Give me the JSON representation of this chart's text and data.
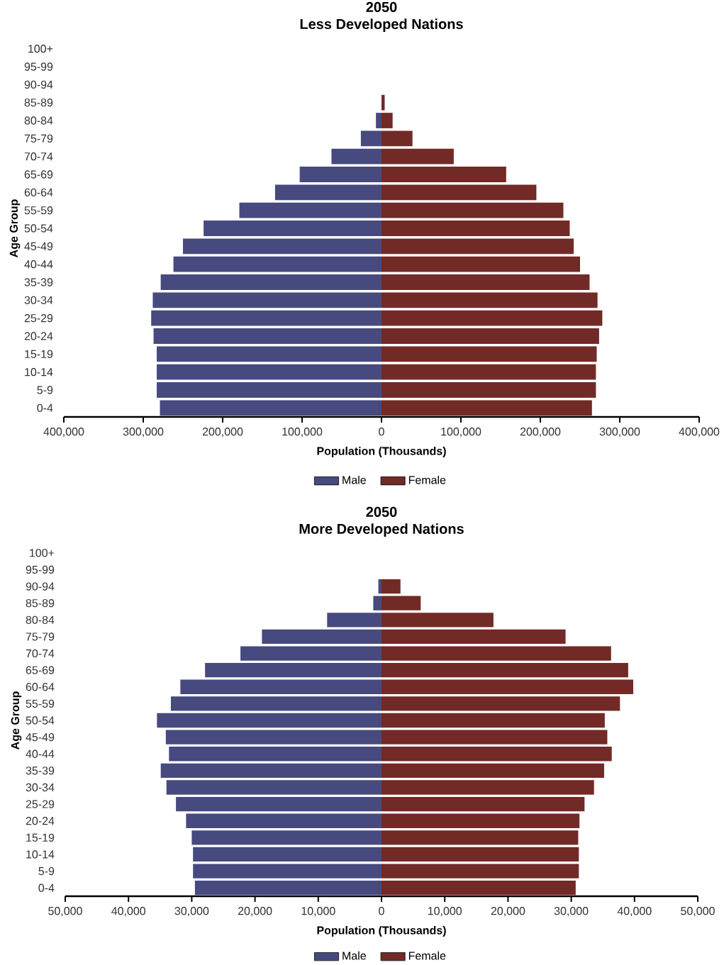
{
  "chart_data": [
    {
      "type": "bar",
      "orientation": "horizontal",
      "title": "2050",
      "subtitle": "Less Developed Nations",
      "xlabel": "Population (Thousands)",
      "ylabel": "Age Group",
      "categories": [
        "100+",
        "95-99",
        "90-94",
        "85-89",
        "80-84",
        "75-79",
        "70-74",
        "65-69",
        "60-64",
        "55-59",
        "50-54",
        "45-49",
        "40-44",
        "35-39",
        "30-34",
        "25-29",
        "20-24",
        "15-19",
        "10-14",
        "5-9",
        "0-4"
      ],
      "series": [
        {
          "name": "Male",
          "color": "#464a7e",
          "values": [
            0,
            0,
            0,
            0,
            -7000,
            -26000,
            -63000,
            -103000,
            -134000,
            -179000,
            -224000,
            -250000,
            -262000,
            -278000,
            -288000,
            -290000,
            -287000,
            -283000,
            -283000,
            -283000,
            -279000
          ]
        },
        {
          "name": "Female",
          "color": "#722a27",
          "values": [
            0,
            0,
            0,
            4000,
            14000,
            39000,
            91000,
            157000,
            195000,
            229000,
            237000,
            242000,
            250000,
            262000,
            272000,
            278000,
            274000,
            271000,
            270000,
            270000,
            265000
          ]
        }
      ],
      "xlim": [
        -400000,
        400000
      ],
      "xticks": [
        {
          "value": -400000,
          "label": "400,000"
        },
        {
          "value": -300000,
          "label": "300,000"
        },
        {
          "value": -200000,
          "label": "200,000"
        },
        {
          "value": -100000,
          "label": "100,000"
        },
        0,
        {
          "value": 100000,
          "label": "100,000"
        },
        {
          "value": 200000,
          "label": "200,000"
        },
        {
          "value": 300000,
          "label": "300,000"
        },
        {
          "value": 400000,
          "label": "400,000"
        }
      ],
      "legend": "bottom",
      "grid": false,
      "stacked": true
    },
    {
      "type": "bar",
      "orientation": "horizontal",
      "title": "2050",
      "subtitle": "More Developed Nations",
      "xlabel": "Population (Thousands)",
      "ylabel": "Age Group",
      "categories": [
        "100+",
        "95-99",
        "90-94",
        "85-89",
        "80-84",
        "75-79",
        "70-74",
        "65-69",
        "60-64",
        "55-59",
        "50-54",
        "45-49",
        "40-44",
        "35-39",
        "30-34",
        "25-29",
        "20-24",
        "15-19",
        "10-14",
        "5-9",
        "0-4"
      ],
      "series": [
        {
          "name": "Male",
          "color": "#464a7e",
          "values": [
            0,
            0,
            -500,
            -1300,
            -8600,
            -18900,
            -22300,
            -27900,
            -31800,
            -33300,
            -35500,
            -34100,
            -33600,
            -34900,
            -34000,
            -32500,
            -30900,
            -30000,
            -29800,
            -29800,
            -29500
          ]
        },
        {
          "name": "Female",
          "color": "#722a27",
          "values": [
            0,
            0,
            3000,
            6200,
            17700,
            29100,
            36300,
            39000,
            39800,
            37700,
            35300,
            35700,
            36400,
            35200,
            33600,
            32100,
            31300,
            31100,
            31200,
            31200,
            30700
          ]
        }
      ],
      "xlim": [
        -50000,
        50000
      ],
      "xticks": [
        {
          "value": -50000,
          "label": "50,000"
        },
        {
          "value": -40000,
          "label": "40,000"
        },
        {
          "value": -30000,
          "label": "30,000"
        },
        {
          "value": -20000,
          "label": "20,000"
        },
        {
          "value": -10000,
          "label": "10,000"
        },
        0,
        {
          "value": 10000,
          "label": "10,000"
        },
        {
          "value": 20000,
          "label": "20,000"
        },
        {
          "value": 30000,
          "label": "30,000"
        },
        {
          "value": 40000,
          "label": "40,000"
        },
        {
          "value": 50000,
          "label": "50,000"
        }
      ],
      "legend": "bottom",
      "grid": false,
      "stacked": true
    }
  ]
}
